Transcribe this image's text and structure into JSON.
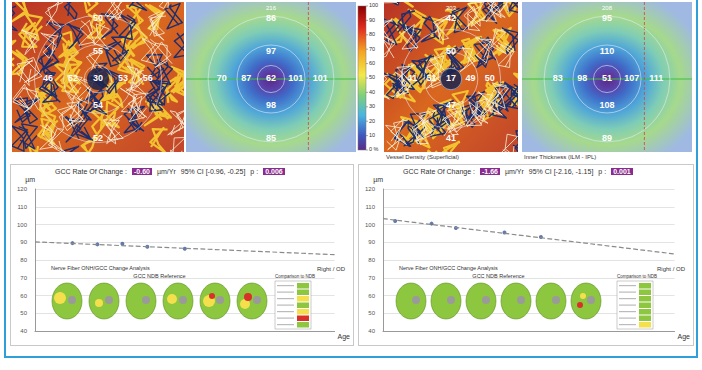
{
  "figure": {
    "maps": [
      {
        "kind": "vessel",
        "values": {
          "center": 30,
          "top_inner": 55,
          "top_outer": 50,
          "left_inner": 52,
          "left_outer": 46,
          "right_inner": 53,
          "right_outer": 56,
          "bottom_inner": 54,
          "bottom_outer": 52
        }
      },
      {
        "kind": "thickness",
        "scan_label": "216",
        "values": {
          "center": 62,
          "top_inner": 97,
          "top_outer": 86,
          "left_inner": 87,
          "left_outer": 70,
          "right_inner": 101,
          "right_outer": 101,
          "bottom_inner": 98,
          "bottom_outer": 85
        }
      },
      {
        "kind": "vessel",
        "scan_label": "203",
        "caption": "Vessel Density (Superficial)",
        "values": {
          "center": 17,
          "top_inner": 50,
          "top_outer": 42,
          "left_inner": 51,
          "left_outer": 41,
          "right_inner": 49,
          "right_outer": 50,
          "bottom_inner": 47,
          "bottom_outer": 41
        }
      },
      {
        "kind": "thickness",
        "scan_label": "208",
        "caption": "Inner Thickness (ILM - IPL)",
        "values": {
          "center": 51,
          "top_inner": 110,
          "top_outer": 95,
          "left_inner": 98,
          "left_outer": 83,
          "right_inner": 107,
          "right_outer": 111,
          "bottom_inner": 108,
          "bottom_outer": 89
        }
      }
    ],
    "colorbar": {
      "range": [
        0,
        100
      ],
      "ticks": [
        {
          "value": 0,
          "label": "0 %"
        },
        10,
        20,
        30,
        40,
        50,
        60,
        70,
        80,
        90,
        100
      ]
    }
  },
  "chart_data": [
    {
      "type": "line",
      "header": {
        "label": "GCC Rate Of Change :",
        "rate": "-0.60",
        "unit": "µm/Yr",
        "ci": "95% CI [-0.96, -0.25]",
        "p_label": "p :",
        "p": "0.006"
      },
      "panel": {
        "title": "Nerve Fiber ONH/GCC Change Analysis",
        "reference": "GCC NDB Reference",
        "eye": "Right / OD",
        "comparison": "Comparison to NDB"
      },
      "ylabel": "µm",
      "xlabel": "Age",
      "x": [
        0,
        1.5,
        2.5,
        3.5,
        4.5,
        6,
        12
      ],
      "series": [
        {
          "type": "scatter",
          "color": "#3b5a9a",
          "marker": "circle",
          "values": [
            null,
            89.5,
            88.8,
            89.2,
            87.5,
            86.3,
            null
          ]
        },
        {
          "type": "line",
          "color": "#8a8a8a",
          "line_style": "dashed",
          "values": [
            90.2,
            null,
            null,
            null,
            null,
            null,
            83.0
          ]
        }
      ],
      "xlim": [
        0,
        12
      ],
      "ylim": [
        40,
        120
      ],
      "yticks": [
        40,
        50,
        60,
        70,
        80,
        90,
        100,
        110,
        120
      ],
      "grid": true,
      "tick_labels": "y"
    },
    {
      "type": "line",
      "header": {
        "label": "GCC Rate Of Change :",
        "rate": "-1.66",
        "unit": "µm/Yr",
        "ci": "95% CI [-2.16, -1.15]",
        "p_label": "p :",
        "p": "0.001"
      },
      "panel": {
        "title": "Nerve Fiber ONH/GCC Change Analysis",
        "reference": "GCC NDB Reference",
        "eye": "Right / OD",
        "comparison": "Comparison to NDB"
      },
      "ylabel": "µm",
      "xlabel": "Age",
      "x": [
        0,
        0.5,
        2,
        3,
        5,
        6.5,
        12
      ],
      "series": [
        {
          "type": "scatter",
          "color": "#3b5a9a",
          "marker": "circle",
          "values": [
            null,
            102,
            100.5,
            98,
            95.5,
            93,
            null
          ]
        },
        {
          "type": "line",
          "color": "#8a8a8a",
          "line_style": "dashed",
          "values": [
            103.3,
            null,
            null,
            null,
            null,
            null,
            83.4
          ]
        }
      ],
      "xlim": [
        0,
        12
      ],
      "ylim": [
        40,
        120
      ],
      "yticks": [
        40,
        50,
        60,
        70,
        80,
        90,
        100,
        110,
        120
      ],
      "grid": true,
      "tick_labels": "y"
    }
  ]
}
